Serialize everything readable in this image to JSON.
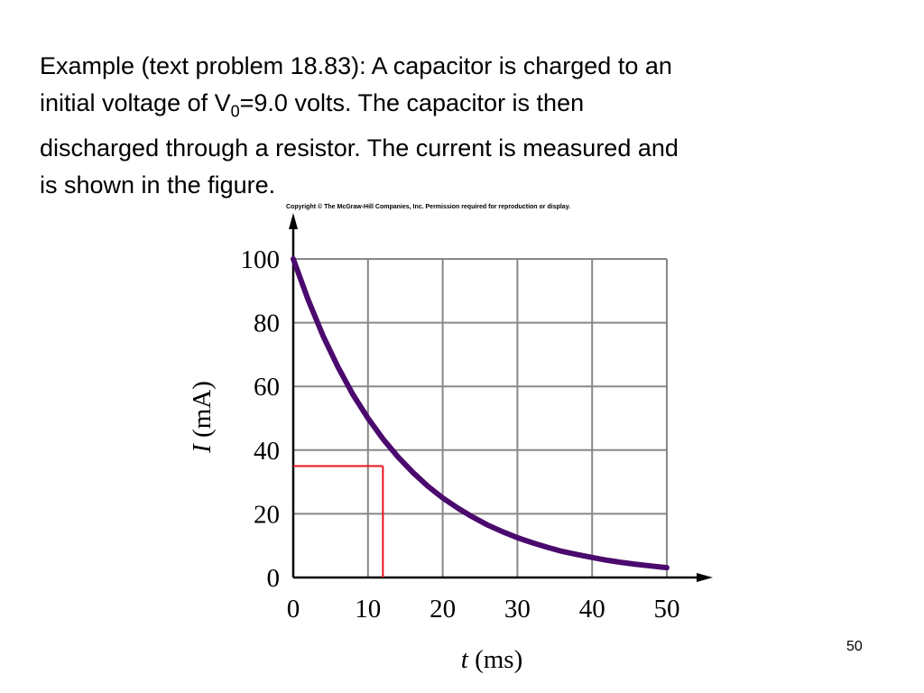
{
  "problem": {
    "line1": "Example (text problem 18.83): A capacitor is charged to an",
    "line2_before": "initial voltage of V",
    "line2_sub": "0",
    "line2_after": "=9.0 volts.  The capacitor is then",
    "line3": "discharged through a resistor.  The current is measured and",
    "line4": "is shown in the figure."
  },
  "copyright": "Copyright © The McGraw-Hill Companies, Inc. Permission required for reproduction or display.",
  "slide_number": "50",
  "chart_data": {
    "type": "line",
    "title": "",
    "xlabel_var": "t",
    "xlabel_unit": " (ms)",
    "ylabel_var": "I",
    "ylabel_unit": " (mA)",
    "xlim": [
      0,
      50
    ],
    "ylim": [
      0,
      100
    ],
    "x_ticks": [
      0,
      10,
      20,
      30,
      40,
      50
    ],
    "y_ticks": [
      0,
      20,
      40,
      60,
      80,
      100
    ],
    "grid": true,
    "series": [
      {
        "color": "#4b0a6e",
        "x": [
          0,
          2,
          4,
          6,
          8,
          10,
          12,
          14,
          16,
          18,
          20,
          22,
          24,
          26,
          28,
          30,
          32,
          34,
          36,
          38,
          40,
          42,
          44,
          46,
          48,
          50
        ],
        "y": [
          100,
          87.1,
          75.8,
          66.0,
          57.4,
          50.0,
          43.5,
          37.9,
          33.0,
          28.7,
          25.0,
          21.8,
          19.0,
          16.5,
          14.4,
          12.5,
          10.9,
          9.5,
          8.2,
          7.2,
          6.3,
          5.4,
          4.7,
          4.1,
          3.6,
          3.1
        ]
      }
    ],
    "marker": {
      "color": "#e8141e",
      "x": 12,
      "y": 35
    }
  }
}
